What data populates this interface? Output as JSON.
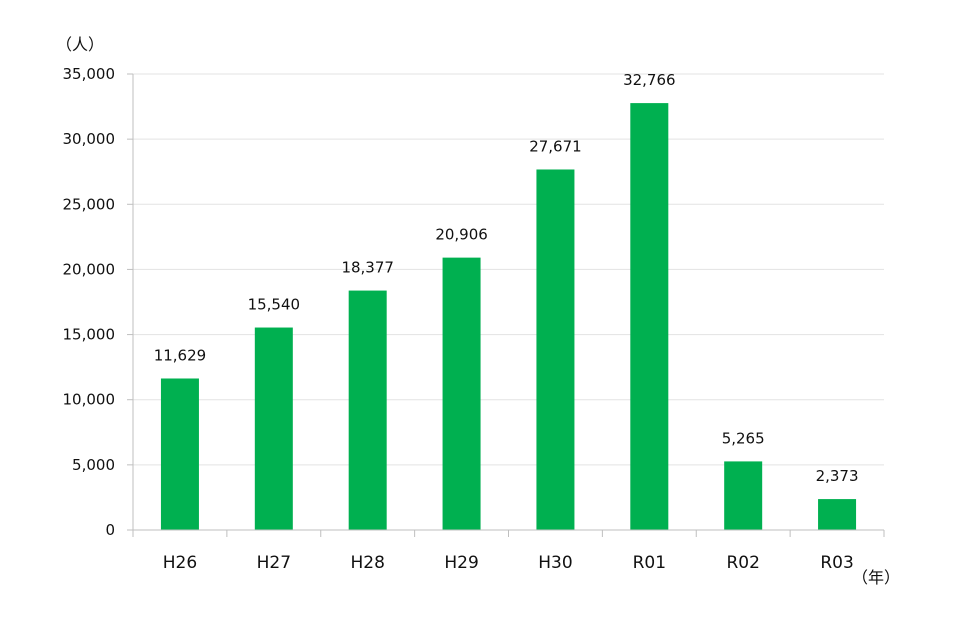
{
  "chart_data": {
    "type": "bar",
    "categories": [
      "H26",
      "H27",
      "H28",
      "H29",
      "H30",
      "R01",
      "R02",
      "R03"
    ],
    "values": [
      11629,
      15540,
      18377,
      20906,
      27671,
      32766,
      5265,
      2373
    ],
    "data_labels": [
      "11,629",
      "15,540",
      "18,377",
      "20,906",
      "27,671",
      "32,766",
      "5,265",
      "2,373"
    ],
    "y_unit_label": "（人）",
    "x_unit_label": "（年）",
    "ylim": [
      0,
      35000
    ],
    "y_ticks": [
      0,
      5000,
      10000,
      15000,
      20000,
      25000,
      30000,
      35000
    ],
    "y_tick_labels": [
      "0",
      "5,000",
      "10,000",
      "15,000",
      "20,000",
      "25,000",
      "30,000",
      "35,000"
    ],
    "grid": true,
    "bar_color": "#00b050",
    "grid_color": "#e3e3e3",
    "axis_color": "#bfbfbf"
  }
}
